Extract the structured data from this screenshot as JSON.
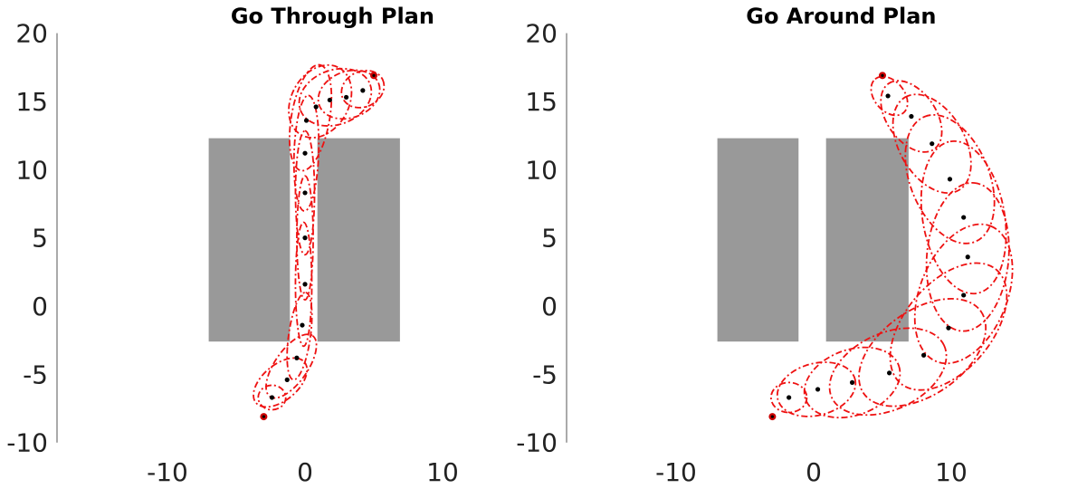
{
  "chart_data": [
    {
      "type": "scatter",
      "title": "Go Through Plan",
      "xlabel": "",
      "ylabel": "",
      "xlim": [
        -18,
        18
      ],
      "ylim": [
        -10,
        20
      ],
      "xticks": [
        -10,
        0,
        10
      ],
      "yticks": [
        20,
        15,
        10,
        5,
        0,
        -5,
        -10
      ],
      "grid": false,
      "colors": {
        "obstacle": "#999999",
        "ellipse": "#ee1111",
        "mean": "#000000",
        "endpoint": "#cc0000"
      },
      "obstacles": [
        {
          "x0": -7,
          "x1": -1.1,
          "y0": -2.6,
          "y1": 12.3
        },
        {
          "x0": 0.9,
          "x1": 6.9,
          "y0": -2.6,
          "y1": 12.3
        }
      ],
      "start": [
        -3,
        -8.1
      ],
      "goal": [
        5,
        16.9
      ],
      "means": [
        [
          -2.4,
          -6.7
        ],
        [
          -1.3,
          -5.4
        ],
        [
          -0.6,
          -3.8
        ],
        [
          -0.2,
          -1.4
        ],
        [
          0,
          1.6
        ],
        [
          0,
          5
        ],
        [
          0,
          8.3
        ],
        [
          0,
          11.2
        ],
        [
          0.1,
          13.6
        ],
        [
          0.8,
          14.6
        ],
        [
          1.8,
          15.1
        ],
        [
          3,
          15.3
        ],
        [
          4.2,
          15.8
        ]
      ],
      "ellipses": [
        {
          "cx": -2.4,
          "cy": -6.7,
          "rx": 1.0,
          "ry": 0.9,
          "angle": 0
        },
        {
          "cx": -1.8,
          "cy": -5.6,
          "rx": 2.3,
          "ry": 1.3,
          "angle": 40
        },
        {
          "cx": -1.0,
          "cy": -4.4,
          "rx": 2.7,
          "ry": 1.2,
          "angle": 55
        },
        {
          "cx": -0.4,
          "cy": -2.2,
          "rx": 3.2,
          "ry": 0.8,
          "angle": 82
        },
        {
          "cx": -0.1,
          "cy": 1.6,
          "rx": 4.5,
          "ry": 0.6,
          "angle": 90
        },
        {
          "cx": 0,
          "cy": 5,
          "rx": 4.5,
          "ry": 0.6,
          "angle": 90
        },
        {
          "cx": 0,
          "cy": 8.3,
          "rx": 4.5,
          "ry": 0.7,
          "angle": 90
        },
        {
          "cx": 0.1,
          "cy": 11.2,
          "rx": 4.2,
          "ry": 0.9,
          "angle": 88
        },
        {
          "cx": 0.4,
          "cy": 13.8,
          "rx": 3.9,
          "ry": 1.4,
          "angle": 80
        },
        {
          "cx": 1.1,
          "cy": 15.0,
          "rx": 2.8,
          "ry": 2.1,
          "angle": 60
        },
        {
          "cx": 2.2,
          "cy": 15.3,
          "rx": 2.7,
          "ry": 2.0,
          "angle": 20
        },
        {
          "cx": 3.2,
          "cy": 15.5,
          "rx": 2.3,
          "ry": 1.7,
          "angle": 20
        },
        {
          "cx": 4.2,
          "cy": 15.9,
          "rx": 1.6,
          "ry": 1.3,
          "angle": 25
        }
      ]
    },
    {
      "type": "scatter",
      "title": "Go Around Plan",
      "xlabel": "",
      "ylabel": "",
      "xlim": [
        -18,
        18
      ],
      "ylim": [
        -10,
        20
      ],
      "xticks": [
        -10,
        0,
        10
      ],
      "yticks": [
        20,
        15,
        10,
        5,
        0,
        -5,
        -10
      ],
      "grid": false,
      "colors": {
        "obstacle": "#999999",
        "ellipse": "#ee1111",
        "mean": "#000000",
        "endpoint": "#cc0000"
      },
      "obstacles": [
        {
          "x0": -7,
          "x1": -1.1,
          "y0": -2.6,
          "y1": 12.3
        },
        {
          "x0": 0.9,
          "x1": 6.9,
          "y0": -2.6,
          "y1": 12.3
        }
      ],
      "start": [
        -3,
        -8.1
      ],
      "goal": [
        5,
        16.9
      ],
      "means": [
        [
          -1.8,
          -6.7
        ],
        [
          0.3,
          -6.1
        ],
        [
          2.8,
          -5.6
        ],
        [
          5.5,
          -4.9
        ],
        [
          8,
          -3.6
        ],
        [
          9.8,
          -1.6
        ],
        [
          10.9,
          0.8
        ],
        [
          11.2,
          3.6
        ],
        [
          10.9,
          6.5
        ],
        [
          9.9,
          9.3
        ],
        [
          8.6,
          11.9
        ],
        [
          7.1,
          13.9
        ],
        [
          5.4,
          15.4
        ]
      ],
      "ellipses": [
        {
          "cx": -1.8,
          "cy": -6.7,
          "rx": 1.3,
          "ry": 1.1,
          "angle": 0
        },
        {
          "cx": 0.2,
          "cy": -6.1,
          "rx": 2.9,
          "ry": 1.9,
          "angle": 15
        },
        {
          "cx": 2.8,
          "cy": -5.6,
          "rx": 3.6,
          "ry": 2.4,
          "angle": 20
        },
        {
          "cx": 5.4,
          "cy": -4.8,
          "rx": 4.5,
          "ry": 2.8,
          "angle": 25
        },
        {
          "cx": 7.9,
          "cy": -3.4,
          "rx": 5.2,
          "ry": 3.1,
          "angle": 35
        },
        {
          "cx": 9.8,
          "cy": -1.5,
          "rx": 5.4,
          "ry": 3.2,
          "angle": 50
        },
        {
          "cx": 10.9,
          "cy": 0.9,
          "rx": 5.3,
          "ry": 3.2,
          "angle": 68
        },
        {
          "cx": 11.2,
          "cy": 3.6,
          "rx": 5.4,
          "ry": 3.0,
          "angle": 85
        },
        {
          "cx": 10.9,
          "cy": 6.5,
          "rx": 5.6,
          "ry": 3.0,
          "angle": 100
        },
        {
          "cx": 9.9,
          "cy": 9.3,
          "rx": 4.9,
          "ry": 2.9,
          "angle": 112
        },
        {
          "cx": 8.6,
          "cy": 11.9,
          "rx": 3.9,
          "ry": 2.4,
          "angle": 120
        },
        {
          "cx": 7.1,
          "cy": 13.9,
          "rx": 2.9,
          "ry": 1.8,
          "angle": 125
        },
        {
          "cx": 5.5,
          "cy": 15.4,
          "rx": 1.6,
          "ry": 1.1,
          "angle": 130
        }
      ]
    }
  ]
}
